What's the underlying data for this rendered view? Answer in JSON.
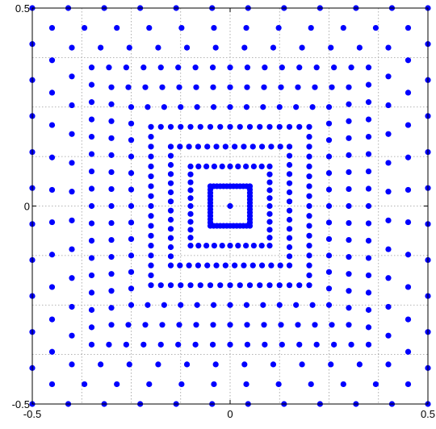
{
  "chart_data": {
    "type": "scatter",
    "title": "",
    "xlabel": "",
    "ylabel": "",
    "xlim": [
      -0.5,
      0.5
    ],
    "ylim": [
      -0.5,
      0.5
    ],
    "grid": true,
    "grid_step": 0.125,
    "x_ticks": [
      -0.5,
      0,
      0.5
    ],
    "y_ticks": [
      -0.5,
      0,
      0.5
    ],
    "x_tick_labels": [
      "-0.5",
      "0",
      "0.5"
    ],
    "y_tick_labels": [
      "-0.5",
      "0",
      "0.5"
    ],
    "marker_color": "#0000ff",
    "center_point": [
      0,
      0
    ],
    "outer_grid": {
      "description": "even lattice 0.0891 spacing, shifted half step in the x and y bands between squares",
      "spacing": 0.0891
    },
    "rings": [
      {
        "half_width": 0.05,
        "points_per_side": 12
      },
      {
        "half_width": 0.1,
        "points_per_side": 10
      },
      {
        "half_width": 0.15,
        "points_per_side": 13
      },
      {
        "half_width": 0.2,
        "points_per_side": 16
      },
      {
        "half_width": 0.25,
        "points_per_side": 12
      },
      {
        "half_width": 0.3,
        "points_per_side": 14
      },
      {
        "half_width": 0.35,
        "points_per_side": 16
      },
      {
        "half_width": 0.4,
        "points_per_side": 11
      },
      {
        "half_width": 0.45,
        "points_per_side": 11
      },
      {
        "half_width": 0.5,
        "points_per_side": 11
      }
    ]
  }
}
